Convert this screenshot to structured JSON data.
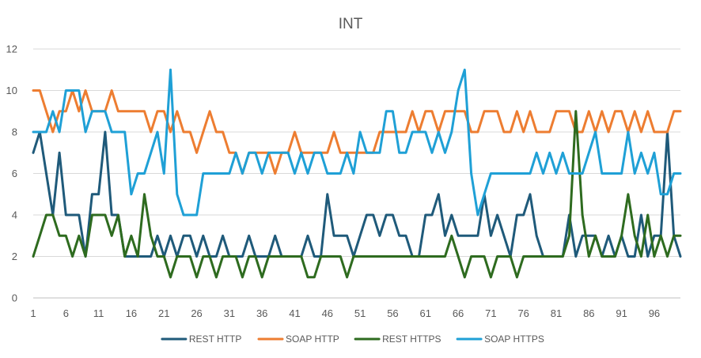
{
  "chart_data": {
    "type": "line",
    "title": "INT",
    "xlabel": "",
    "ylabel": "",
    "ylim": [
      0,
      12
    ],
    "yticks": [
      0,
      2,
      4,
      6,
      8,
      10,
      12
    ],
    "xticks": [
      1,
      6,
      11,
      16,
      21,
      26,
      31,
      36,
      41,
      46,
      51,
      56,
      61,
      66,
      71,
      76,
      81,
      86,
      91,
      96
    ],
    "grid": true,
    "legend_position": "bottom",
    "x": [
      1,
      2,
      3,
      4,
      5,
      6,
      7,
      8,
      9,
      10,
      11,
      12,
      13,
      14,
      15,
      16,
      17,
      18,
      19,
      20,
      21,
      22,
      23,
      24,
      25,
      26,
      27,
      28,
      29,
      30,
      31,
      32,
      33,
      34,
      35,
      36,
      37,
      38,
      39,
      40,
      41,
      42,
      43,
      44,
      45,
      46,
      47,
      48,
      49,
      50,
      51,
      52,
      53,
      54,
      55,
      56,
      57,
      58,
      59,
      60,
      61,
      62,
      63,
      64,
      65,
      66,
      67,
      68,
      69,
      70,
      71,
      72,
      73,
      74,
      75,
      76,
      77,
      78,
      79,
      80,
      81,
      82,
      83,
      84,
      85,
      86,
      87,
      88,
      89,
      90,
      91,
      92,
      93,
      94,
      95,
      96,
      97,
      98,
      99,
      100
    ],
    "series": [
      {
        "name": "REST HTTP",
        "color": "#1F5A7A",
        "values": [
          7,
          8,
          6,
          4,
          7,
          4,
          4,
          4,
          2,
          5,
          5,
          8,
          4,
          4,
          2,
          2,
          2,
          2,
          2,
          3,
          2,
          3,
          2,
          3,
          3,
          2,
          3,
          2,
          2,
          3,
          2,
          2,
          2,
          3,
          2,
          2,
          2,
          3,
          2,
          2,
          2,
          2,
          3,
          2,
          2,
          5,
          3,
          3,
          3,
          2,
          3,
          4,
          4,
          3,
          4,
          4,
          3,
          3,
          2,
          2,
          4,
          4,
          5,
          3,
          4,
          3,
          3,
          3,
          3,
          5,
          3,
          4,
          3,
          2,
          4,
          4,
          5,
          3,
          2,
          2,
          2,
          2,
          4,
          2,
          3,
          3,
          3,
          2,
          3,
          2,
          3,
          2,
          2,
          4,
          2,
          3,
          3,
          8,
          3,
          2
        ]
      },
      {
        "name": "SOAP HTTP",
        "color": "#ED7D31",
        "values": [
          10,
          10,
          9,
          8,
          9,
          9,
          10,
          9,
          10,
          9,
          9,
          9,
          10,
          9,
          9,
          9,
          9,
          9,
          8,
          9,
          9,
          8,
          9,
          8,
          8,
          7,
          8,
          9,
          8,
          8,
          7,
          7,
          6,
          7,
          7,
          7,
          7,
          6,
          7,
          7,
          8,
          7,
          7,
          7,
          7,
          7,
          8,
          7,
          7,
          7,
          7,
          7,
          7,
          8,
          8,
          8,
          8,
          8,
          9,
          8,
          9,
          9,
          8,
          9,
          9,
          9,
          9,
          8,
          8,
          9,
          9,
          9,
          8,
          8,
          9,
          8,
          9,
          8,
          8,
          8,
          9,
          9,
          9,
          8,
          8,
          9,
          8,
          9,
          8,
          9,
          9,
          8,
          9,
          8,
          9,
          8,
          8,
          8,
          9,
          9
        ]
      },
      {
        "name": "REST HTTPS",
        "color": "#2E6B1F",
        "values": [
          2,
          3,
          4,
          4,
          3,
          3,
          2,
          3,
          2,
          4,
          4,
          4,
          3,
          4,
          2,
          3,
          2,
          5,
          3,
          2,
          2,
          1,
          2,
          2,
          2,
          1,
          2,
          2,
          1,
          2,
          2,
          2,
          1,
          2,
          2,
          1,
          2,
          2,
          2,
          2,
          2,
          2,
          1,
          1,
          2,
          2,
          2,
          2,
          1,
          2,
          2,
          2,
          2,
          2,
          2,
          2,
          2,
          2,
          2,
          2,
          2,
          2,
          2,
          2,
          3,
          2,
          1,
          2,
          2,
          2,
          1,
          2,
          2,
          2,
          1,
          2,
          2,
          2,
          2,
          2,
          2,
          2,
          3,
          9,
          4,
          2,
          3,
          2,
          2,
          2,
          3,
          5,
          3,
          2,
          4,
          2,
          3,
          2,
          3,
          3
        ]
      },
      {
        "name": "SOAP HTTPS",
        "color": "#1FA0D6",
        "values": [
          8,
          8,
          8,
          9,
          8,
          10,
          10,
          10,
          8,
          9,
          9,
          9,
          8,
          8,
          8,
          5,
          6,
          6,
          7,
          8,
          6,
          11,
          5,
          4,
          4,
          4,
          6,
          6,
          6,
          6,
          6,
          7,
          6,
          7,
          7,
          6,
          7,
          7,
          7,
          7,
          6,
          7,
          6,
          7,
          7,
          6,
          6,
          6,
          7,
          6,
          8,
          7,
          7,
          7,
          9,
          9,
          7,
          7,
          8,
          8,
          8,
          7,
          8,
          7,
          8,
          10,
          11,
          6,
          4,
          5,
          6,
          6,
          6,
          6,
          6,
          6,
          6,
          7,
          6,
          7,
          6,
          7,
          6,
          6,
          6,
          7,
          8,
          6,
          6,
          6,
          6,
          8,
          6,
          7,
          6,
          7,
          5,
          5,
          6,
          6
        ]
      }
    ]
  }
}
